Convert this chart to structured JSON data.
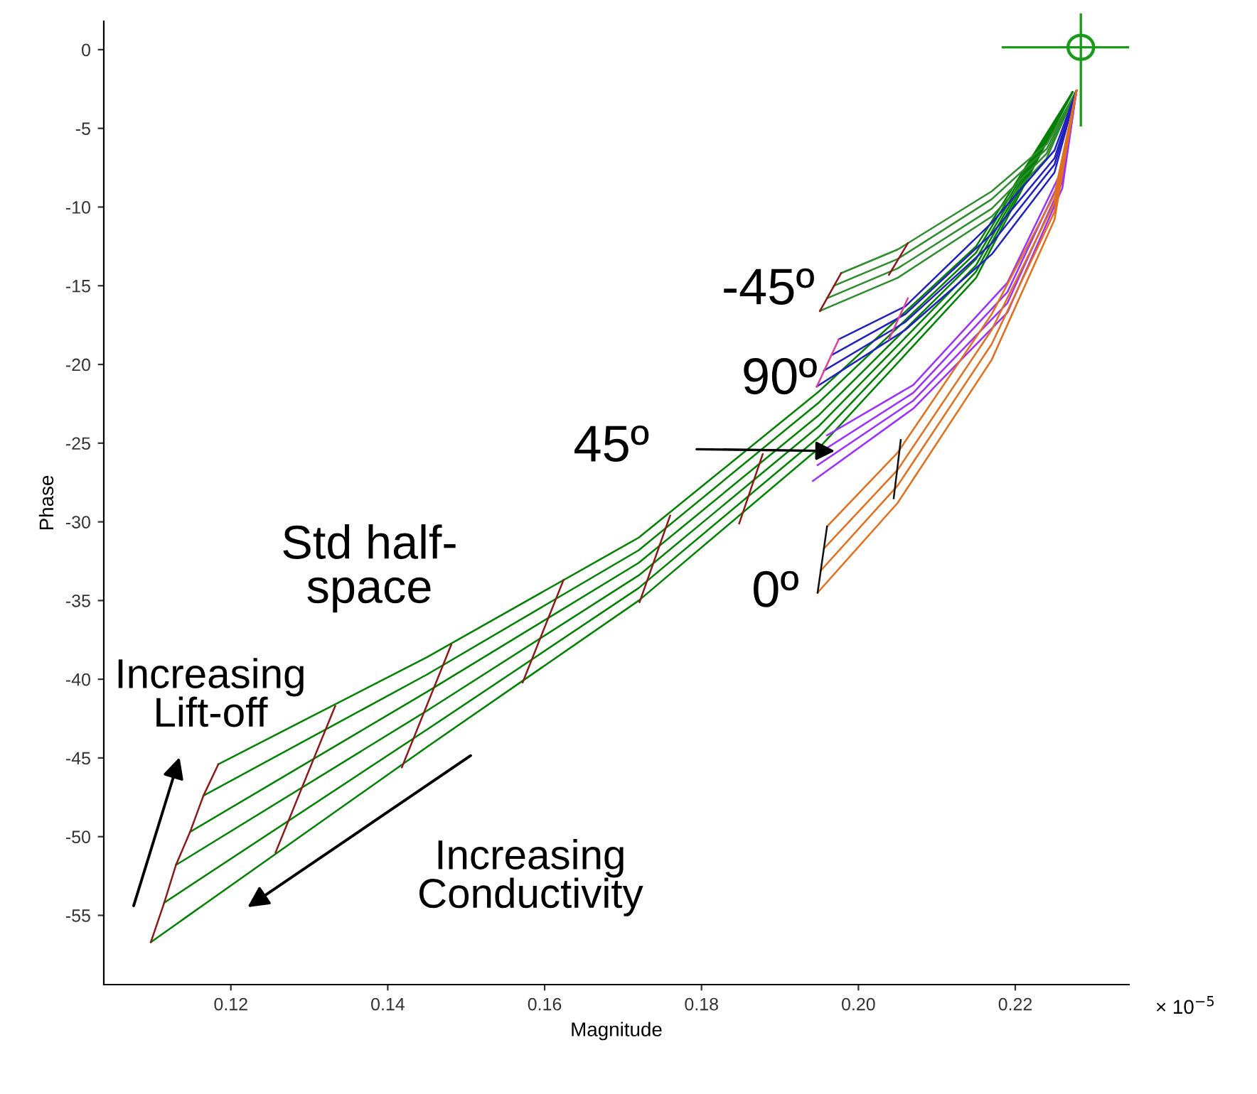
{
  "chart_data": {
    "type": "line",
    "xlabel": "Magnitude",
    "ylabel": "Phase",
    "legend": false,
    "grid": false,
    "marker": "none",
    "line_style": "solid",
    "xlim": [
      0.1038,
      0.2345
    ],
    "ylim": [
      -59.4,
      1.8
    ],
    "xticks": [
      0.12,
      0.14,
      0.16,
      0.18,
      {
        "value": 0.2,
        "label": "0.20"
      },
      0.22
    ],
    "yticks": [
      0,
      -5,
      -10,
      -15,
      -20,
      -25,
      -30,
      -35,
      -40,
      -45,
      -50,
      -55
    ],
    "annotations": [
      "-45º",
      "90º",
      {
        "text": "45º",
        "x": 0.197,
        "y": -25.5
      },
      "0º",
      "Std half-\nspace",
      "Increasing\nLift-off",
      "Increasing\nConductivity",
      "× 10$^{−5}$"
    ],
    "series": [
      {
        "color": "#008000",
        "x": [
          0.1098,
          0.145,
          0.172,
          0.195,
          0.215,
          0.2273
        ],
        "values": [
          -56.7,
          -44.3,
          -35.0,
          -25.3,
          -14.5,
          -2.7
        ]
      },
      {
        "color": "#008000",
        "x": [
          0.1115,
          0.145,
          0.172,
          0.195,
          0.215,
          0.2273
        ],
        "values": [
          -54.2,
          -43.2,
          -34.2,
          -24.6,
          -14.1,
          -2.7
        ]
      },
      {
        "color": "#008000",
        "x": [
          0.113,
          0.145,
          0.172,
          0.195,
          0.215,
          0.2273
        ],
        "values": [
          -51.8,
          -42.0,
          -33.4,
          -23.9,
          -13.7,
          -2.7
        ]
      },
      {
        "color": "#008000",
        "x": [
          0.1148,
          0.145,
          0.172,
          0.195,
          0.215,
          0.2273
        ],
        "values": [
          -49.7,
          -40.8,
          -32.6,
          -23.2,
          -13.3,
          -2.7
        ]
      },
      {
        "color": "#008000",
        "x": [
          0.1165,
          0.145,
          0.172,
          0.195,
          0.215,
          0.2273
        ],
        "values": [
          -47.4,
          -39.7,
          -31.8,
          -22.4,
          -12.9,
          -2.7
        ]
      },
      {
        "color": "#008000",
        "x": [
          0.1184,
          0.145,
          0.172,
          0.195,
          0.215,
          0.2273
        ],
        "values": [
          -45.4,
          -38.6,
          -31.0,
          -21.7,
          -12.5,
          -2.7
        ]
      },
      {
        "color": "#8b1a1a",
        "x": [
          0.1098,
          0.1115,
          0.113,
          0.1148,
          0.1165,
          0.1184
        ],
        "values": [
          -56.7,
          -54.2,
          -51.8,
          -49.7,
          -47.4,
          -45.4
        ]
      },
      {
        "color": "#8b1a1a",
        "x": [
          0.1257,
          0.1333
        ],
        "values": [
          -51.0,
          -41.7
        ]
      },
      {
        "color": "#8b1a1a",
        "x": [
          0.1418,
          0.1481
        ],
        "values": [
          -45.6,
          -37.8
        ]
      },
      {
        "color": "#8b1a1a",
        "x": [
          0.1572,
          0.1624
        ],
        "values": [
          -40.2,
          -33.7
        ]
      },
      {
        "color": "#8b1a1a",
        "x": [
          0.1721,
          0.176
        ],
        "values": [
          -35.1,
          -29.6
        ]
      },
      {
        "color": "#8b1a1a",
        "x": [
          0.1848,
          0.1878
        ],
        "values": [
          -30.1,
          -25.7
        ]
      },
      {
        "color": "#2e8b2e",
        "x": [
          0.1951,
          0.205,
          0.217,
          0.224,
          0.2278
        ],
        "values": [
          -16.6,
          -14.5,
          -10.6,
          -6.9,
          -2.6
        ]
      },
      {
        "color": "#2e8b2e",
        "x": [
          0.196,
          0.205,
          0.217,
          0.224,
          0.2278
        ],
        "values": [
          -15.8,
          -13.9,
          -10.1,
          -6.6,
          -2.6
        ]
      },
      {
        "color": "#2e8b2e",
        "x": [
          0.1969,
          0.205,
          0.217,
          0.224,
          0.2278
        ],
        "values": [
          -15.0,
          -13.3,
          -9.5,
          -6.3,
          -2.6
        ]
      },
      {
        "color": "#2e8b2e",
        "x": [
          0.1978,
          0.205,
          0.217,
          0.224,
          0.2278
        ],
        "values": [
          -14.2,
          -12.7,
          -9.0,
          -6.0,
          -2.6
        ]
      },
      {
        "color": "#8b1a1a",
        "x": [
          0.1951,
          0.1978
        ],
        "values": [
          -16.6,
          -14.2
        ]
      },
      {
        "color": "#8b1a1a",
        "x": [
          0.2039,
          0.2063
        ],
        "values": [
          -14.3,
          -12.3
        ]
      },
      {
        "color": "#2020c0",
        "x": [
          0.1947,
          0.206,
          0.217,
          0.225,
          0.2278
        ],
        "values": [
          -21.4,
          -17.8,
          -13.0,
          -7.8,
          -2.6
        ]
      },
      {
        "color": "#2020c0",
        "x": [
          0.1956,
          0.206,
          0.217,
          0.225,
          0.2278
        ],
        "values": [
          -20.4,
          -17.3,
          -12.3,
          -7.3,
          -2.6
        ]
      },
      {
        "color": "#2020c0",
        "x": [
          0.1966,
          0.206,
          0.217,
          0.225,
          0.2278
        ],
        "values": [
          -19.4,
          -16.8,
          -11.7,
          -6.9,
          -2.6
        ]
      },
      {
        "color": "#2020c0",
        "x": [
          0.1975,
          0.206,
          0.217,
          0.225,
          0.2278
        ],
        "values": [
          -18.4,
          -16.3,
          -11.0,
          -6.4,
          -2.6
        ]
      },
      {
        "color": "#e0409a",
        "x": [
          0.1947,
          0.1975
        ],
        "values": [
          -21.4,
          -18.4
        ]
      },
      {
        "color": "#e0409a",
        "x": [
          0.2039,
          0.2063
        ],
        "values": [
          -18.4,
          -15.8
        ]
      },
      {
        "color": "#9b30ff",
        "x": [
          0.1942,
          0.207,
          0.219,
          0.226,
          0.2278
        ],
        "values": [
          -27.4,
          -22.8,
          -16.7,
          -8.8,
          -2.6
        ]
      },
      {
        "color": "#9b30ff",
        "x": [
          0.1948,
          0.207,
          0.219,
          0.226,
          0.2278
        ],
        "values": [
          -26.4,
          -22.3,
          -16.1,
          -8.4,
          -2.6
        ]
      },
      {
        "color": "#9b30ff",
        "x": [
          0.1954,
          0.207,
          0.219,
          0.226,
          0.2278
        ],
        "values": [
          -25.5,
          -21.8,
          -15.4,
          -8.0,
          -2.6
        ]
      },
      {
        "color": "#9b30ff",
        "x": [
          0.196,
          0.207,
          0.219,
          0.226,
          0.2278
        ],
        "values": [
          -24.5,
          -21.3,
          -14.8,
          -7.6,
          -2.6
        ]
      },
      {
        "color": "#e07020",
        "x": [
          0.1948,
          0.205,
          0.217,
          0.225,
          0.2278
        ],
        "values": [
          -34.5,
          -28.8,
          -19.7,
          -10.8,
          -2.6
        ]
      },
      {
        "color": "#e07020",
        "x": [
          0.1952,
          0.205,
          0.217,
          0.225,
          0.2278
        ],
        "values": [
          -33.1,
          -27.7,
          -18.7,
          -10.3,
          -2.6
        ]
      },
      {
        "color": "#e07020",
        "x": [
          0.1956,
          0.205,
          0.217,
          0.225,
          0.2278
        ],
        "values": [
          -31.7,
          -26.7,
          -17.8,
          -9.7,
          -2.6
        ]
      },
      {
        "color": "#e07020",
        "x": [
          0.196,
          0.205,
          0.217,
          0.225,
          0.2278
        ],
        "values": [
          -30.3,
          -25.6,
          -16.8,
          -9.2,
          -2.6
        ]
      },
      {
        "color": "#111111",
        "x": [
          0.1948,
          0.196
        ],
        "values": [
          -34.5,
          -30.3
        ]
      },
      {
        "color": "#111111",
        "x": [
          0.2045,
          0.2054
        ],
        "values": [
          -28.5,
          -24.8
        ]
      }
    ]
  }
}
